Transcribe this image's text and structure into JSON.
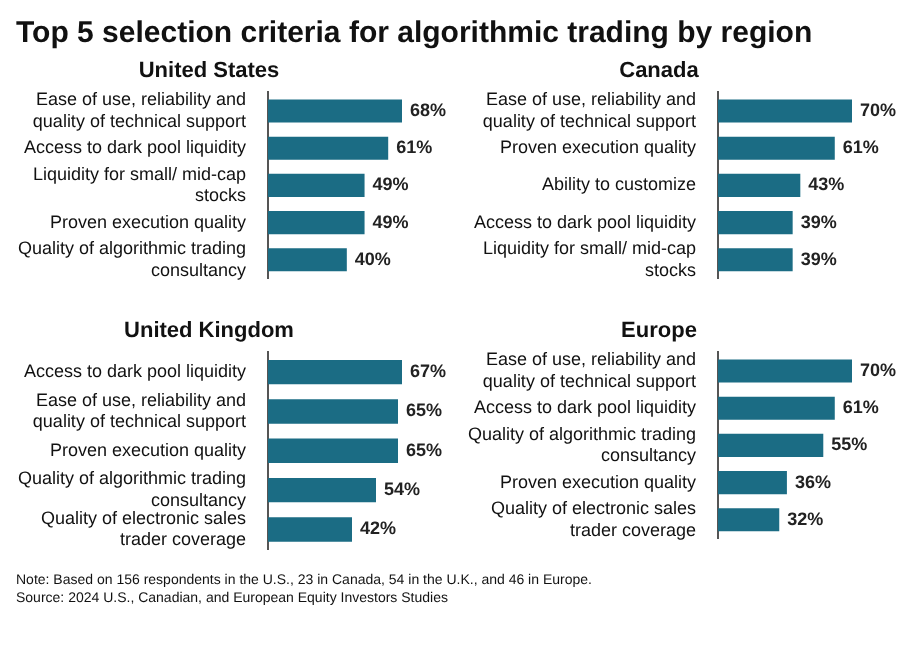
{
  "chart_data": [
    {
      "type": "bar",
      "orientation": "horizontal",
      "title": "United States",
      "categories": [
        "Ease of use, reliability and quality of technical support",
        "Access to dark pool liquidity",
        "Liquidity for small/ mid-cap stocks",
        "Proven execution quality",
        "Quality of algorithmic trading consultancy"
      ],
      "values": [
        68,
        61,
        49,
        49,
        40
      ],
      "value_labels": [
        "68%",
        "61%",
        "49%",
        "49%",
        "40%"
      ],
      "color": "#1b6c84",
      "annotations": [
        "Top 5 selection criteria for algorithmic trading by region"
      ]
    },
    {
      "type": "bar",
      "orientation": "horizontal",
      "title": "Canada",
      "categories": [
        "Ease of use, reliability and quality of technical support",
        "Proven execution quality",
        "Ability to customize",
        "Access to dark pool liquidity",
        "Liquidity for small/ mid-cap stocks"
      ],
      "values": [
        70,
        61,
        43,
        39,
        39
      ],
      "value_labels": [
        "70%",
        "61%",
        "43%",
        "39%",
        "39%"
      ],
      "color": "#1b6c84"
    },
    {
      "type": "bar",
      "orientation": "horizontal",
      "title": "United Kingdom",
      "categories": [
        "Access to dark pool liquidity",
        "Ease of use, reliability and quality of technical support",
        "Proven execution quality",
        "Quality of algorithmic trading consultancy",
        "Quality of electronic sales trader coverage"
      ],
      "values": [
        67,
        65,
        65,
        54,
        42
      ],
      "value_labels": [
        "67%",
        "65%",
        "65%",
        "54%",
        "42%"
      ],
      "color": "#1b6c84"
    },
    {
      "type": "bar",
      "orientation": "horizontal",
      "title": "Europe",
      "categories": [
        "Ease of use, reliability and quality of technical support",
        "Access to dark pool liquidity",
        "Quality of algorithmic trading consultancy",
        "Proven execution quality",
        "Quality of electronic sales trader coverage"
      ],
      "values": [
        70,
        61,
        55,
        36,
        32
      ],
      "value_labels": [
        "70%",
        "61%",
        "55%",
        "36%",
        "32%"
      ],
      "color": "#1b6c84",
      "annotations": [
        "Note: Based on 156 respondents in the U.S., 23 in Canada, 54 in the U.K., and 46 in Europe.",
        "Source: 2024 U.S., Canadian, and European Equity Investors Studies"
      ]
    }
  ]
}
